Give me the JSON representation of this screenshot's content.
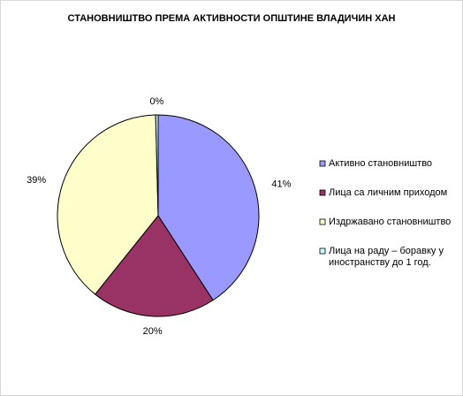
{
  "chart_data": {
    "type": "pie",
    "title": "СТАНОВНИШТВО ПРЕМА АКТИВНОСТИ ОПШТИНЕ ВЛАДИЧИН ХАН",
    "start_angle_deg": 0,
    "direction": "clockwise",
    "legend_position": "right",
    "slices": [
      {
        "label": "Активно становништво",
        "value": 41,
        "display": "41%",
        "color": "#9999ff"
      },
      {
        "label": "Лица са личним приходом",
        "value": 20,
        "display": "20%",
        "color": "#993366"
      },
      {
        "label": "Издржавано становништво",
        "value": 39,
        "display": "39%",
        "color": "#ffffcc"
      },
      {
        "label": [
          "Лица на раду – боравку у",
          "иностранству до 1 год."
        ],
        "value": 0.4,
        "display": "0%",
        "color": "#ccffff"
      }
    ]
  }
}
